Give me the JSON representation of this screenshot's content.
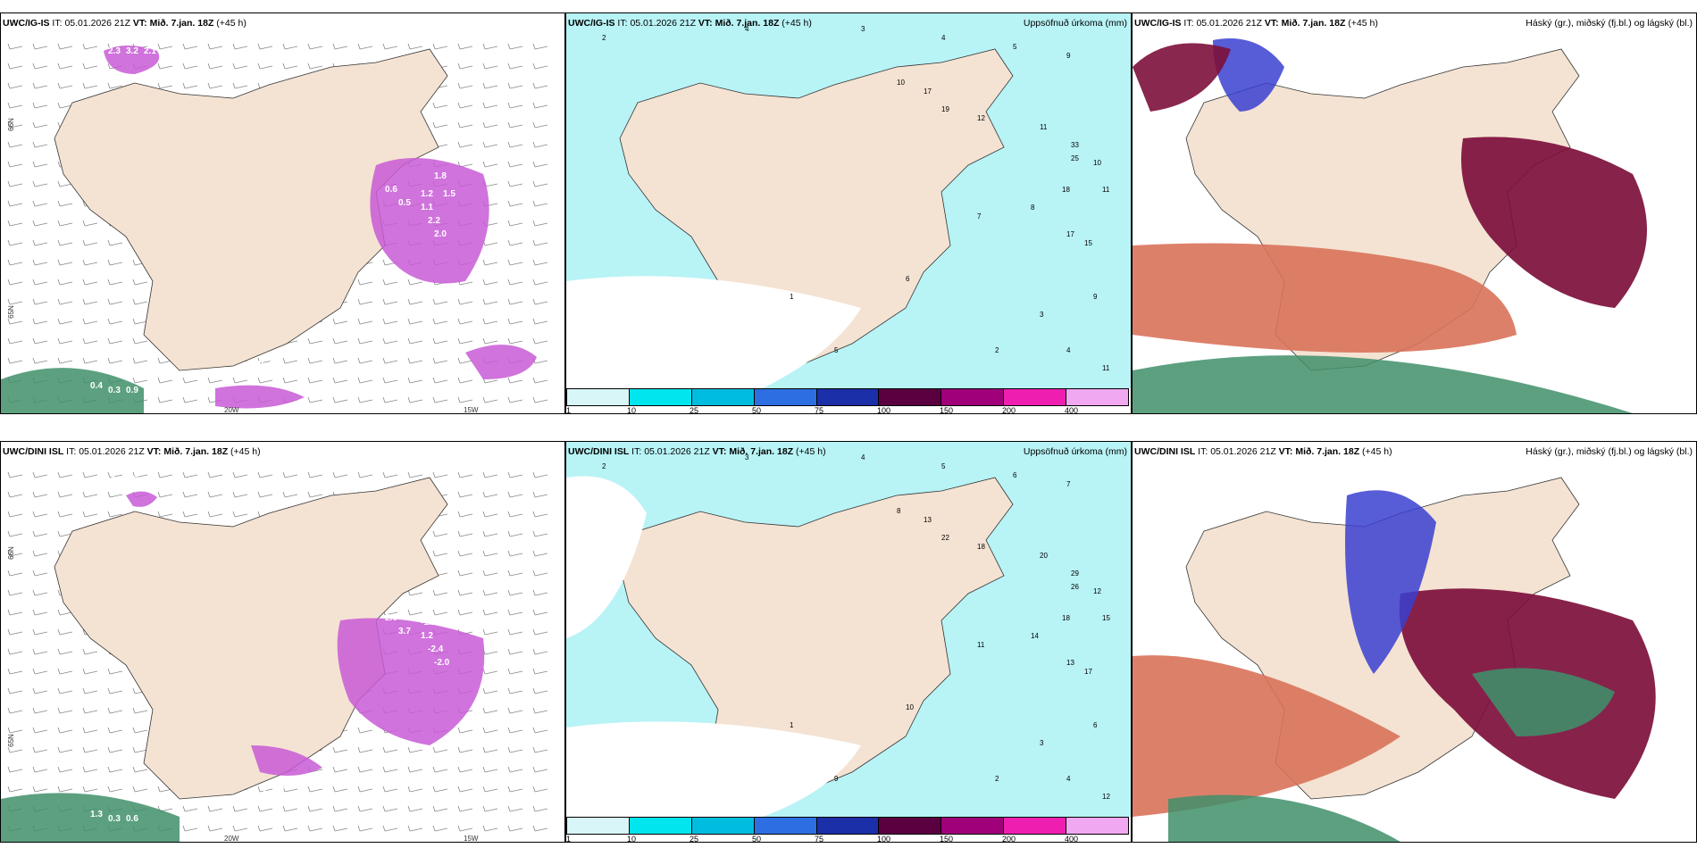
{
  "colorbar": {
    "labels": [
      "1",
      "10",
      "25",
      "50",
      "75",
      "100",
      "150",
      "200",
      "400"
    ],
    "colors": [
      "#d8f6f8",
      "#00e5ee",
      "#00bde0",
      "#2d6fe3",
      "#1b2fa8",
      "#5a0040",
      "#a0007a",
      "#ee1fb0",
      "#f0a8f0"
    ]
  },
  "colors": {
    "land": "#f4e3d3",
    "rain_light": "#b8f3f6",
    "magenta": "#c85ad6",
    "deep_red": "#7d0f3c",
    "salmon": "#d9725a",
    "blue": "#3a3fd0",
    "green": "#3f8f6a"
  },
  "rows": [
    {
      "model": "UWC/IG-IS",
      "it_label": "IT:",
      "it_value": "05.01.2026 21Z",
      "vt_label": "VT:",
      "vt_value": "Mið. 7.jan. 18Z",
      "lead": "(+45 h)",
      "precip_title": "Uppsöfnuð úrkoma (mm)",
      "cloud_title": "Háský (gr.), miðský (fj.bl.) og lágský (bl.)",
      "lon_labels": [
        "20W",
        "15W"
      ],
      "lat_labels": [
        "66N",
        "65N"
      ],
      "temp_labels": [
        "2.3",
        "3.2",
        "2.1",
        "0.6",
        "0.5",
        "1.2",
        "1.5",
        "1.8",
        "1.1",
        "2.2",
        "2.0",
        "0.5",
        "1.0",
        "0.4",
        "0.3",
        "0.9"
      ],
      "precip_numbers": [
        "2",
        "4",
        "3",
        "4",
        "5",
        "9",
        "10",
        "17",
        "19",
        "12",
        "11",
        "33",
        "25",
        "18",
        "10",
        "11",
        "15",
        "17",
        "8",
        "7",
        "6",
        "5",
        "1",
        "2",
        "3",
        "4",
        "9",
        "11"
      ]
    },
    {
      "model": "UWC/DINI ISL",
      "it_label": "IT:",
      "it_value": "05.01.2026 21Z",
      "vt_label": "VT:",
      "vt_value": "Mið. 7.jan. 18Z",
      "lead": "(+45 h)",
      "precip_title": "Uppsöfnuð úrkoma (mm)",
      "cloud_title": "Háský (gr.), miðský (fj.bl.) og lágský (bl.)",
      "lon_labels": [
        "20W",
        "15W"
      ],
      "lat_labels": [
        "66N",
        "65N"
      ],
      "temp_labels": [
        "-1.1",
        "0.8",
        "1.3",
        "2.0",
        "3.7",
        "-1.2",
        "0.6",
        "-1.3",
        "1.2",
        "-2.4",
        "-2.0",
        "-1.8",
        "-1.3",
        "1.3",
        "0.3",
        "0.6"
      ],
      "precip_numbers": [
        "2",
        "3",
        "4",
        "5",
        "6",
        "7",
        "8",
        "13",
        "22",
        "18",
        "20",
        "29",
        "26",
        "18",
        "12",
        "15",
        "17",
        "13",
        "14",
        "11",
        "10",
        "9",
        "1",
        "2",
        "3",
        "4",
        "6",
        "12"
      ]
    }
  ]
}
